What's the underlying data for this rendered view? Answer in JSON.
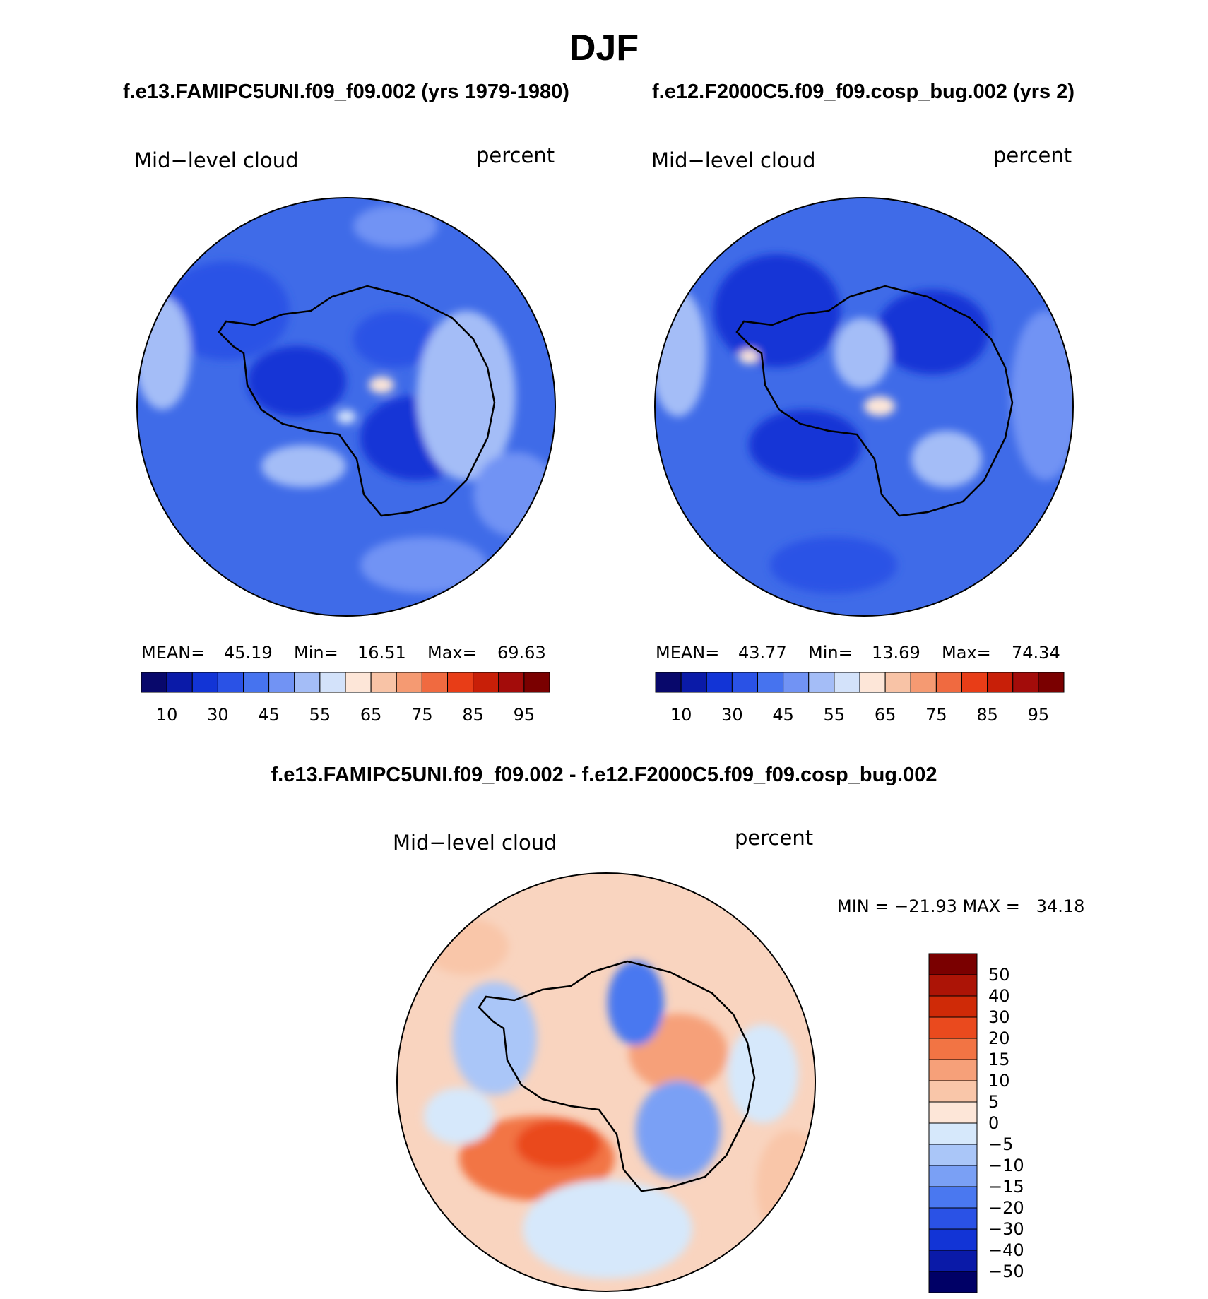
{
  "figure": {
    "season_title": "DJF",
    "left_header": "f.e13.FAMIPC5UNI.f09_f09.002 (yrs 1979-1980)",
    "right_header": "f.e12.F2000C5.f09_f09.cosp_bug.002 (yrs 2)",
    "diff_header": "f.e13.FAMIPC5UNI.f09_f09.002 - f.e12.F2000C5.f09_f09.cosp_bug.002"
  },
  "colors": {
    "abs_palette": [
      "#08086b",
      "#0a1aa8",
      "#1234d6",
      "#2a52e6",
      "#4673ef",
      "#7193f4",
      "#a4bdf7",
      "#d3e2fa",
      "#fde6d8",
      "#f8c3a6",
      "#f59a72",
      "#f06a40",
      "#e83d17",
      "#c81f08",
      "#a30c0a",
      "#7a0000"
    ],
    "diff_palette": [
      "#000066",
      "#0a1aa8",
      "#1234d6",
      "#2a52e6",
      "#4a78f0",
      "#7aa0f5",
      "#aac6f8",
      "#d6e8fb",
      "#fde6d8",
      "#f9c6a9",
      "#f6a079",
      "#f27444",
      "#ea4a1e",
      "#cf2a07",
      "#ac1406",
      "#7a0000"
    ],
    "coastline": "#000000"
  },
  "chart_data": [
    {
      "type": "heatmap",
      "projection": "south polar stereographic",
      "title": "Mid−level cloud",
      "units": "percent",
      "stats": {
        "mean_label": "MEAN=",
        "mean": "45.19",
        "min_label": "Min=",
        "min": "16.51",
        "max_label": "Max=",
        "max": "69.63"
      },
      "colorbar": {
        "orientation": "horizontal",
        "tick_labels": [
          "10",
          "30",
          "45",
          "55",
          "65",
          "75",
          "85",
          "95"
        ]
      }
    },
    {
      "type": "heatmap",
      "projection": "south polar stereographic",
      "title": "Mid−level cloud",
      "units": "percent",
      "stats": {
        "mean_label": "MEAN=",
        "mean": "43.77",
        "min_label": "Min=",
        "min": "13.69",
        "max_label": "Max=",
        "max": "74.34"
      },
      "colorbar": {
        "orientation": "horizontal",
        "tick_labels": [
          "10",
          "30",
          "45",
          "55",
          "65",
          "75",
          "85",
          "95"
        ]
      }
    },
    {
      "type": "heatmap",
      "projection": "south polar stereographic",
      "title": "Mid−level cloud",
      "units": "percent",
      "stats_text": "MIN = −21.93 MAX =   34.18",
      "colorbar": {
        "orientation": "vertical",
        "tick_labels": [
          "50",
          "40",
          "30",
          "20",
          "15",
          "10",
          "5",
          "0",
          "−5",
          "−10",
          "−15",
          "−20",
          "−30",
          "−40",
          "−50"
        ]
      }
    }
  ]
}
